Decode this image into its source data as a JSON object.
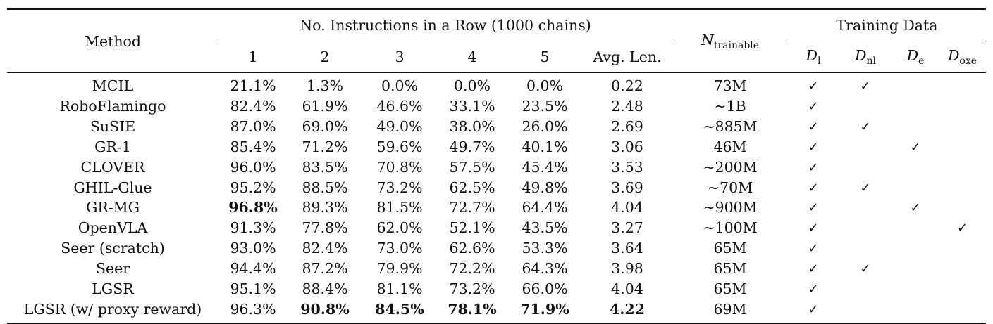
{
  "table": {
    "columns": {
      "method": "Method",
      "group_instructions": "No. Instructions in a Row (1000 chains)",
      "steps": [
        "1",
        "2",
        "3",
        "4",
        "5"
      ],
      "avg_len": "Avg. Len.",
      "trainable_symbol": "N",
      "trainable_sub": "trainable",
      "group_training": "Training Data",
      "data_cols": [
        {
          "sym": "D",
          "sub": "l"
        },
        {
          "sym": "D",
          "sub": "nl"
        },
        {
          "sym": "D",
          "sub": "e"
        },
        {
          "sym": "D",
          "sub": "oxe"
        }
      ]
    },
    "check_mark": "✓",
    "rows": [
      {
        "method": "MCIL",
        "s1": "21.1%",
        "s2": "1.3%",
        "s3": "0.0%",
        "s4": "0.0%",
        "s5": "0.0%",
        "avg": "0.22",
        "params": "73M",
        "checks": [
          true,
          true,
          false,
          false
        ],
        "bold": []
      },
      {
        "method": "RoboFlamingo",
        "s1": "82.4%",
        "s2": "61.9%",
        "s3": "46.6%",
        "s4": "33.1%",
        "s5": "23.5%",
        "avg": "2.48",
        "params": "∼1B",
        "checks": [
          true,
          false,
          false,
          false
        ],
        "bold": []
      },
      {
        "method": "SuSIE",
        "s1": "87.0%",
        "s2": "69.0%",
        "s3": "49.0%",
        "s4": "38.0%",
        "s5": "26.0%",
        "avg": "2.69",
        "params": "∼885M",
        "checks": [
          true,
          true,
          false,
          false
        ],
        "bold": []
      },
      {
        "method": "GR-1",
        "s1": "85.4%",
        "s2": "71.2%",
        "s3": "59.6%",
        "s4": "49.7%",
        "s5": "40.1%",
        "avg": "3.06",
        "params": "46M",
        "checks": [
          true,
          false,
          true,
          false
        ],
        "bold": []
      },
      {
        "method": "CLOVER",
        "s1": "96.0%",
        "s2": "83.5%",
        "s3": "70.8%",
        "s4": "57.5%",
        "s5": "45.4%",
        "avg": "3.53",
        "params": "∼200M",
        "checks": [
          true,
          false,
          false,
          false
        ],
        "bold": []
      },
      {
        "method": "GHIL-Glue",
        "s1": "95.2%",
        "s2": "88.5%",
        "s3": "73.2%",
        "s4": "62.5%",
        "s5": "49.8%",
        "avg": "3.69",
        "params": "∼70M",
        "checks": [
          true,
          true,
          false,
          false
        ],
        "bold": []
      },
      {
        "method": "GR-MG",
        "s1": "96.8%",
        "s2": "89.3%",
        "s3": "81.5%",
        "s4": "72.7%",
        "s5": "64.4%",
        "avg": "4.04",
        "params": "∼900M",
        "checks": [
          true,
          false,
          true,
          false
        ],
        "bold": [
          "s1"
        ]
      },
      {
        "method": "OpenVLA",
        "s1": "91.3%",
        "s2": "77.8%",
        "s3": "62.0%",
        "s4": "52.1%",
        "s5": "43.5%",
        "avg": "3.27",
        "params": "∼100M",
        "checks": [
          true,
          false,
          false,
          true
        ],
        "bold": []
      },
      {
        "method": "Seer (scratch)",
        "s1": "93.0%",
        "s2": "82.4%",
        "s3": "73.0%",
        "s4": "62.6%",
        "s5": "53.3%",
        "avg": "3.64",
        "params": "65M",
        "checks": [
          true,
          false,
          false,
          false
        ],
        "bold": []
      },
      {
        "method": "Seer",
        "s1": "94.4%",
        "s2": "87.2%",
        "s3": "79.9%",
        "s4": "72.2%",
        "s5": "64.3%",
        "avg": "3.98",
        "params": "65M",
        "checks": [
          true,
          true,
          false,
          false
        ],
        "bold": []
      },
      {
        "method": "LGSR",
        "s1": "95.1%",
        "s2": "88.4%",
        "s3": "81.1%",
        "s4": "73.2%",
        "s5": "66.0%",
        "avg": "4.04",
        "params": "65M",
        "checks": [
          true,
          false,
          false,
          false
        ],
        "bold": []
      },
      {
        "method": "LGSR (w/ proxy reward)",
        "s1": "96.3%",
        "s2": "90.8%",
        "s3": "84.5%",
        "s4": "78.1%",
        "s5": "71.9%",
        "avg": "4.22",
        "params": "69M",
        "checks": [
          true,
          false,
          false,
          false
        ],
        "bold": [
          "s2",
          "s3",
          "s4",
          "s5",
          "avg"
        ]
      }
    ]
  }
}
